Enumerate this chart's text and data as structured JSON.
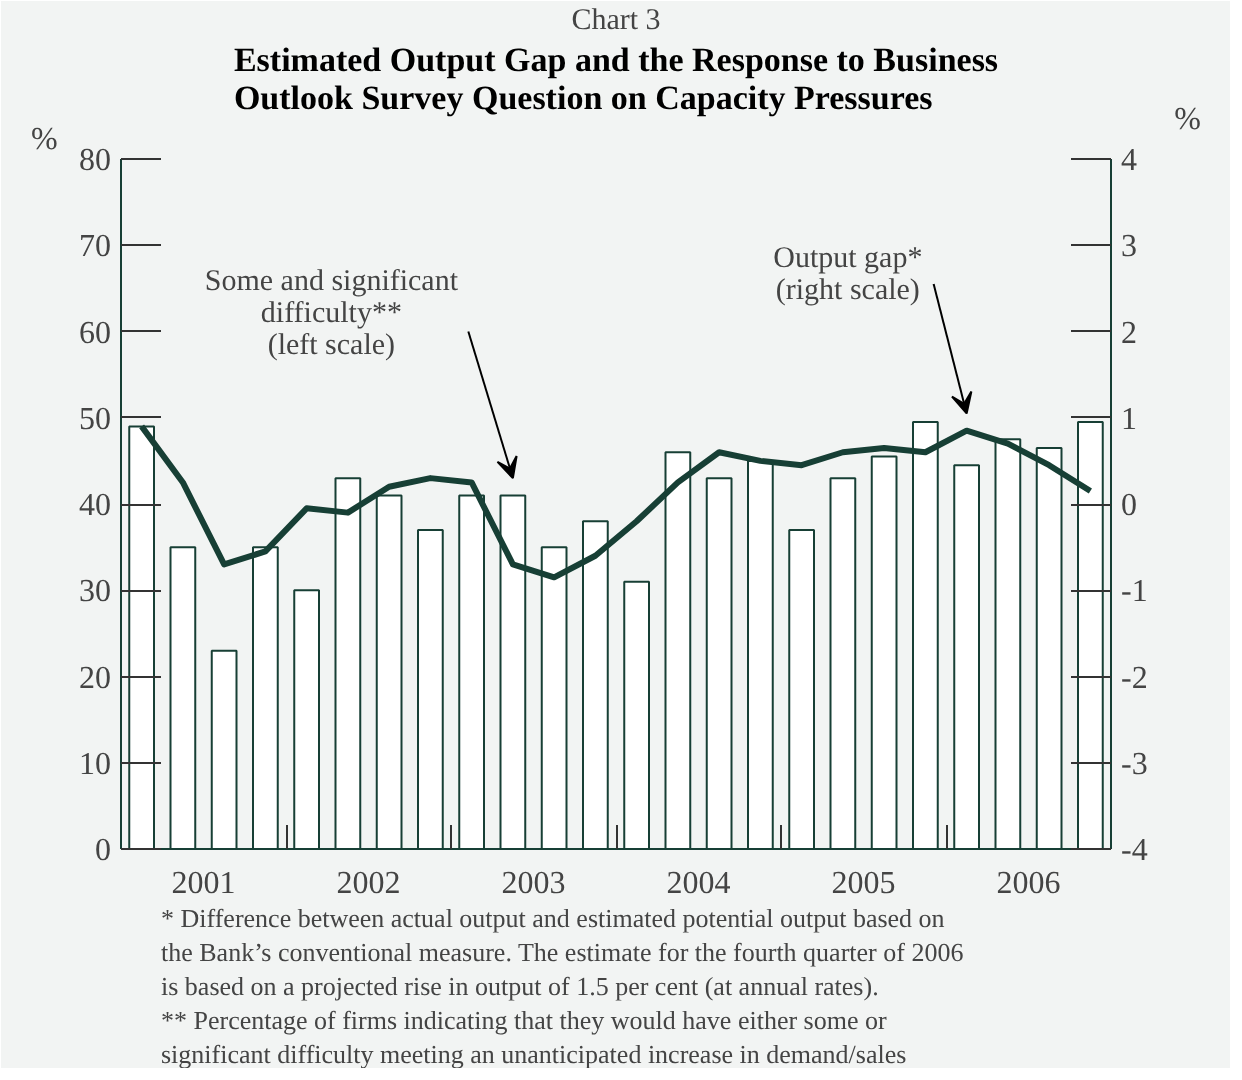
{
  "chart_data": {
    "type": "bar",
    "subtitle": "Chart 3",
    "title": "Estimated Output Gap and the Response to Business Outlook Survey Question on Capacity Pressures",
    "ylabel": "%",
    "y2label": "%",
    "x": [
      2001.125,
      2001.375,
      2001.625,
      2001.875,
      2002.125,
      2002.375,
      2002.625,
      2002.875,
      2003.125,
      2003.375,
      2003.625,
      2003.875,
      2004.125,
      2004.375,
      2004.625,
      2004.875,
      2005.125,
      2005.375,
      2005.625,
      2005.875,
      2006.125,
      2006.375,
      2006.625,
      2006.875
    ],
    "xlim": [
      2001,
      2007
    ],
    "xticks": [
      {
        "value": 2001.5,
        "label": "2001"
      },
      {
        "value": 2002.5,
        "label": "2002"
      },
      {
        "value": 2003.5,
        "label": "2003"
      },
      {
        "value": 2004.5,
        "label": "2004"
      },
      {
        "value": 2005.5,
        "label": "2005"
      },
      {
        "value": 2006.5,
        "label": "2006"
      },
      {
        "value": 2002,
        "label": null
      },
      {
        "value": 2003,
        "label": null
      },
      {
        "value": 2004,
        "label": null
      },
      {
        "value": 2005,
        "label": null
      },
      {
        "value": 2006,
        "label": null
      }
    ],
    "ylim": [
      0,
      80
    ],
    "yticks": [
      0,
      10,
      20,
      30,
      40,
      50,
      60,
      70,
      80
    ],
    "y2lim": [
      -4,
      4
    ],
    "y2ticks": [
      -4,
      -3,
      -2,
      -1,
      0,
      1,
      2,
      3,
      4
    ],
    "series": [
      {
        "color": "#ffffff",
        "values": [
          49,
          35,
          23,
          35,
          30,
          43,
          41,
          37,
          41,
          41,
          35,
          38,
          31,
          46,
          43,
          45,
          37,
          43,
          45.5,
          49.5,
          44.5,
          47.5,
          46.5,
          49.5
        ]
      },
      {
        "type": "line",
        "axis": "y2",
        "color": "#173f35",
        "values": [
          0.9,
          0.25,
          -0.7,
          -0.55,
          -0.05,
          -0.1,
          0.2,
          0.3,
          0.25,
          -0.7,
          -0.85,
          -0.6,
          -0.2,
          0.25,
          0.6,
          0.5,
          0.45,
          0.6,
          0.65,
          0.6,
          0.85,
          0.7,
          0.45,
          0.15
        ]
      }
    ],
    "annotations": [
      {
        "text": "Some and significant difficulty** (left scale)",
        "x": 2003.375,
        "y": 42
      },
      {
        "text": "Output gap* (right scale)",
        "x": 2006.125,
        "y": 49.5
      },
      "*  Difference between actual output and estimated potential output based on the Bank’s conventional measure. The estimate for the fourth quarter of 2006 is based on a projected rise in output of 1.5 per cent (at annual rates).",
      "** Percentage of firms indicating that they would have either some or significant difficulty meeting an unanticipated increase in demand/sales"
    ],
    "grid": false
  }
}
